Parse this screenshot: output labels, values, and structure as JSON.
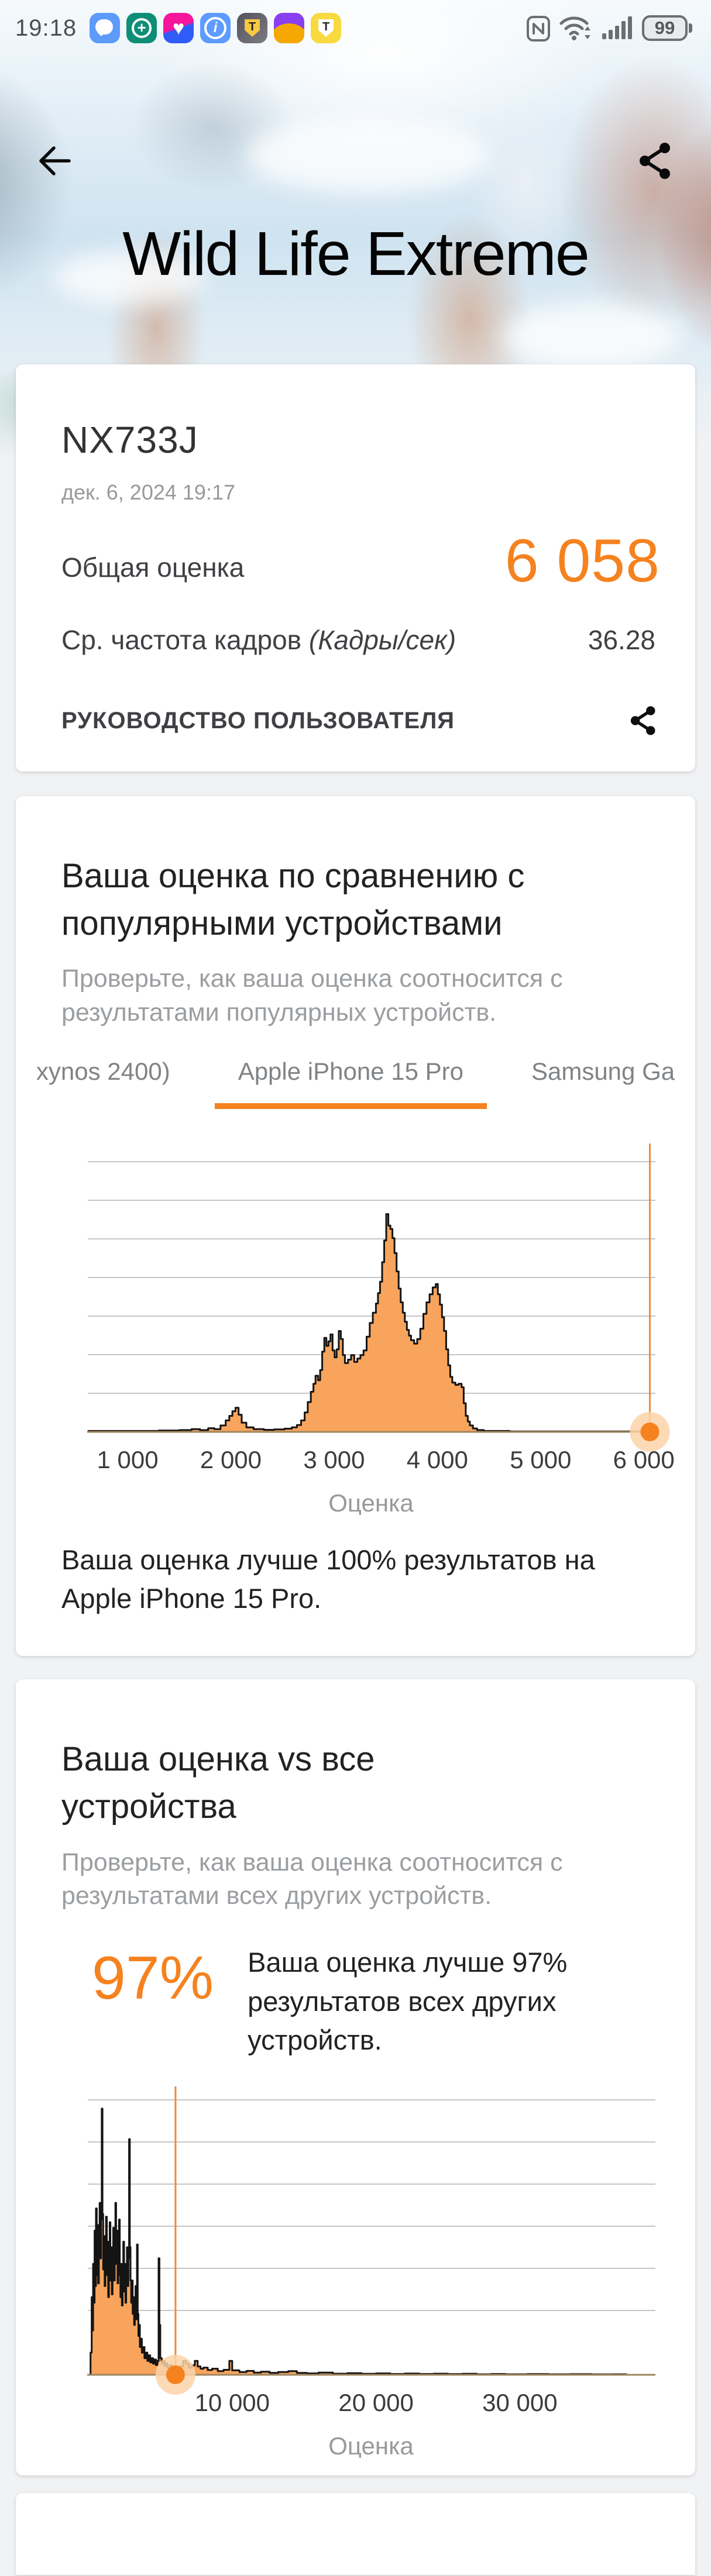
{
  "status_bar": {
    "time": "19:18",
    "app_icons": [
      "chat",
      "health-plus",
      "heart",
      "info",
      "t-shield-dark",
      "wallet-sunrise",
      "t-shield-yellow"
    ],
    "battery_percent": "99"
  },
  "header": {
    "title": "Wild Life Extreme"
  },
  "result_card": {
    "device": "NX733J",
    "datetime": "дек. 6, 2024 19:17",
    "score_label": "Общая оценка",
    "score_value": "6 058",
    "fps_label": "Ср. частота кадров ",
    "fps_unit": "(Кадры/сек)",
    "fps_value": "36.28",
    "user_guide_label": "РУКОВОДСТВО ПОЛЬЗОВАТЕЛЯ"
  },
  "compare_popular": {
    "title": "Ваша оценка по сравнению с популярными устройствами",
    "subtitle": "Проверьте, как ваша оценка соотносится с результатами популярных устройств.",
    "tabs": [
      {
        "label": "xynos 2400)",
        "active": false
      },
      {
        "label": "Apple iPhone 15 Pro",
        "active": true
      },
      {
        "label": "Samsung Ga",
        "active": false
      }
    ],
    "result_text": "Ваша оценка лучше 100% результатов на Apple iPhone 15 Pro."
  },
  "compare_all": {
    "title": "Ваша оценка vs все устройства",
    "subtitle": "Проверьте, как ваша оценка соотносится с результатами всех других устройств.",
    "percent": "97%",
    "result_text": "Ваша оценка лучше 97% результатов всех других устройств."
  },
  "colors": {
    "accent": "#F5821F",
    "hist_fill": "#F9A45C",
    "hist_stroke": "#141414",
    "marker_line": "#EE8B3F",
    "halo": "#FBD4A8",
    "axis": "#A08660",
    "grid": "#C6C6C6"
  },
  "chart_data": [
    {
      "type": "area",
      "title": "",
      "xlabel": "Оценка",
      "ylabel": "",
      "xlim": [
        620,
        6095
      ],
      "ylim": [
        0,
        1
      ],
      "grid": true,
      "gridline_count": 7,
      "legend": "none",
      "x_ticks": [
        1000,
        2000,
        3000,
        4000,
        5000,
        6000
      ],
      "x_tick_labels": [
        "1 000",
        "2 000",
        "3 000",
        "4 000",
        "5 000",
        "6 000"
      ],
      "marker_score": 6058,
      "series": [
        {
          "name": "score-distribution-iphone15pro",
          "points": [
            [
              620,
              0.004
            ],
            [
              1000,
              0.004
            ],
            [
              1300,
              0.006
            ],
            [
              1500,
              0.008
            ],
            [
              1620,
              0.012
            ],
            [
              1700,
              0.008
            ],
            [
              1780,
              0.016
            ],
            [
              1840,
              0.012
            ],
            [
              1900,
              0.028
            ],
            [
              1950,
              0.05
            ],
            [
              1985,
              0.07
            ],
            [
              2015,
              0.09
            ],
            [
              2045,
              0.105
            ],
            [
              2075,
              0.075
            ],
            [
              2105,
              0.04
            ],
            [
              2150,
              0.02
            ],
            [
              2220,
              0.012
            ],
            [
              2320,
              0.009
            ],
            [
              2420,
              0.011
            ],
            [
              2520,
              0.014
            ],
            [
              2590,
              0.02
            ],
            [
              2640,
              0.03
            ],
            [
              2680,
              0.05
            ],
            [
              2715,
              0.085
            ],
            [
              2745,
              0.13
            ],
            [
              2775,
              0.175
            ],
            [
              2800,
              0.21
            ],
            [
              2820,
              0.245
            ],
            [
              2845,
              0.225
            ],
            [
              2865,
              0.27
            ],
            [
              2885,
              0.35
            ],
            [
              2905,
              0.41
            ],
            [
              2925,
              0.375
            ],
            [
              2945,
              0.395
            ],
            [
              2965,
              0.425
            ],
            [
              2985,
              0.355
            ],
            [
              3005,
              0.325
            ],
            [
              3025,
              0.36
            ],
            [
              3045,
              0.44
            ],
            [
              3065,
              0.405
            ],
            [
              3085,
              0.335
            ],
            [
              3105,
              0.3
            ],
            [
              3135,
              0.315
            ],
            [
              3165,
              0.335
            ],
            [
              3195,
              0.305
            ],
            [
              3225,
              0.32
            ],
            [
              3255,
              0.335
            ],
            [
              3285,
              0.355
            ],
            [
              3315,
              0.415
            ],
            [
              3345,
              0.475
            ],
            [
              3375,
              0.52
            ],
            [
              3405,
              0.56
            ],
            [
              3425,
              0.605
            ],
            [
              3445,
              0.655
            ],
            [
              3465,
              0.74
            ],
            [
              3485,
              0.835
            ],
            [
              3505,
              0.95
            ],
            [
              3525,
              0.9
            ],
            [
              3545,
              0.885
            ],
            [
              3565,
              0.845
            ],
            [
              3585,
              0.78
            ],
            [
              3605,
              0.7
            ],
            [
              3625,
              0.625
            ],
            [
              3645,
              0.565
            ],
            [
              3665,
              0.52
            ],
            [
              3685,
              0.48
            ],
            [
              3705,
              0.445
            ],
            [
              3725,
              0.42
            ],
            [
              3745,
              0.4
            ],
            [
              3775,
              0.385
            ],
            [
              3805,
              0.405
            ],
            [
              3835,
              0.45
            ],
            [
              3865,
              0.515
            ],
            [
              3895,
              0.565
            ],
            [
              3925,
              0.6
            ],
            [
              3955,
              0.63
            ],
            [
              3985,
              0.645
            ],
            [
              4005,
              0.6
            ],
            [
              4025,
              0.555
            ],
            [
              4045,
              0.5
            ],
            [
              4065,
              0.44
            ],
            [
              4085,
              0.36
            ],
            [
              4105,
              0.29
            ],
            [
              4125,
              0.24
            ],
            [
              4145,
              0.215
            ],
            [
              4175,
              0.205
            ],
            [
              4205,
              0.21
            ],
            [
              4235,
              0.195
            ],
            [
              4255,
              0.125
            ],
            [
              4275,
              0.07
            ],
            [
              4295,
              0.045
            ],
            [
              4315,
              0.028
            ],
            [
              4345,
              0.015
            ],
            [
              4385,
              0.008
            ],
            [
              4450,
              0.004
            ],
            [
              4700,
              0.002
            ],
            [
              5200,
              0.002
            ],
            [
              6095,
              0.002
            ]
          ]
        }
      ]
    },
    {
      "type": "area",
      "title": "",
      "xlabel": "Оценка",
      "ylabel": "",
      "xlim": [
        0,
        39300
      ],
      "ylim": [
        0,
        1
      ],
      "grid": true,
      "gridline_count": 6,
      "legend": "none",
      "x_ticks": [
        10000,
        20000,
        30000
      ],
      "x_tick_labels": [
        "10 000",
        "20 000",
        "30 000"
      ],
      "marker_score": 6058,
      "series": [
        {
          "name": "score-distribution-all-devices",
          "points": [
            [
              150,
              0.08
            ],
            [
              230,
              0.28
            ],
            [
              280,
              0.16
            ],
            [
              330,
              0.4
            ],
            [
              380,
              0.26
            ],
            [
              430,
              0.52
            ],
            [
              480,
              0.32
            ],
            [
              530,
              0.6
            ],
            [
              580,
              0.36
            ],
            [
              630,
              0.54
            ],
            [
              680,
              0.33
            ],
            [
              730,
              0.47
            ],
            [
              780,
              0.62
            ],
            [
              830,
              0.42
            ],
            [
              880,
              0.56
            ],
            [
              930,
              0.96
            ],
            [
              980,
              0.58
            ],
            [
              1030,
              0.38
            ],
            [
              1080,
              0.5
            ],
            [
              1130,
              0.32
            ],
            [
              1180,
              0.46
            ],
            [
              1230,
              0.57
            ],
            [
              1280,
              0.36
            ],
            [
              1330,
              0.48
            ],
            [
              1380,
              0.28
            ],
            [
              1430,
              0.42
            ],
            [
              1480,
              0.55
            ],
            [
              1530,
              0.34
            ],
            [
              1580,
              0.46
            ],
            [
              1630,
              0.29
            ],
            [
              1680,
              0.4
            ],
            [
              1730,
              0.53
            ],
            [
              1780,
              0.34
            ],
            [
              1830,
              0.46
            ],
            [
              1880,
              0.62
            ],
            [
              1930,
              0.4
            ],
            [
              1980,
              0.52
            ],
            [
              2030,
              0.33
            ],
            [
              2080,
              0.44
            ],
            [
              2130,
              0.56
            ],
            [
              2180,
              0.36
            ],
            [
              2230,
              0.28
            ],
            [
              2280,
              0.4
            ],
            [
              2330,
              0.25
            ],
            [
              2380,
              0.36
            ],
            [
              2430,
              0.48
            ],
            [
              2480,
              0.3
            ],
            [
              2530,
              0.4
            ],
            [
              2580,
              0.26
            ],
            [
              2630,
              0.36
            ],
            [
              2680,
              0.46
            ],
            [
              2730,
              0.32
            ],
            [
              2780,
              0.42
            ],
            [
              2830,
              0.85
            ],
            [
              2880,
              0.46
            ],
            [
              2930,
              0.34
            ],
            [
              2980,
              0.26
            ],
            [
              3030,
              0.34
            ],
            [
              3080,
              0.22
            ],
            [
              3130,
              0.28
            ],
            [
              3180,
              0.18
            ],
            [
              3230,
              0.24
            ],
            [
              3280,
              0.32
            ],
            [
              3330,
              0.2
            ],
            [
              3380,
              0.47
            ],
            [
              3430,
              0.22
            ],
            [
              3480,
              0.14
            ],
            [
              3530,
              0.18
            ],
            [
              3580,
              0.1
            ],
            [
              3650,
              0.13
            ],
            [
              3720,
              0.08
            ],
            [
              3800,
              0.1
            ],
            [
              3900,
              0.06
            ],
            [
              4000,
              0.08
            ],
            [
              4100,
              0.05
            ],
            [
              4200,
              0.07
            ],
            [
              4300,
              0.045
            ],
            [
              4400,
              0.06
            ],
            [
              4500,
              0.04
            ],
            [
              4600,
              0.055
            ],
            [
              4700,
              0.035
            ],
            [
              4800,
              0.05
            ],
            [
              4880,
              0.42
            ],
            [
              4940,
              0.18
            ],
            [
              5000,
              0.06
            ],
            [
              5100,
              0.04
            ],
            [
              5200,
              0.05
            ],
            [
              5300,
              0.032
            ],
            [
              5400,
              0.042
            ],
            [
              5500,
              0.026
            ],
            [
              5650,
              0.034
            ],
            [
              5800,
              0.022
            ],
            [
              6000,
              0.018
            ],
            [
              6200,
              0.022
            ],
            [
              6400,
              0.03
            ],
            [
              6600,
              0.05
            ],
            [
              6800,
              0.04
            ],
            [
              7000,
              0.026
            ],
            [
              7200,
              0.034
            ],
            [
              7400,
              0.05
            ],
            [
              7600,
              0.03
            ],
            [
              7800,
              0.022
            ],
            [
              8000,
              0.026
            ],
            [
              8300,
              0.017
            ],
            [
              8600,
              0.022
            ],
            [
              9000,
              0.013
            ],
            [
              9400,
              0.018
            ],
            [
              9800,
              0.05
            ],
            [
              10000,
              0.016
            ],
            [
              10500,
              0.01
            ],
            [
              11000,
              0.014
            ],
            [
              11500,
              0.008
            ],
            [
              12000,
              0.011
            ],
            [
              12600,
              0.007
            ],
            [
              13200,
              0.01
            ],
            [
              13900,
              0.013
            ],
            [
              14500,
              0.007
            ],
            [
              15200,
              0.005
            ],
            [
              16000,
              0.008
            ],
            [
              17000,
              0.004
            ],
            [
              18000,
              0.006
            ],
            [
              19000,
              0.0035
            ],
            [
              20000,
              0.005
            ],
            [
              21000,
              0.003
            ],
            [
              22000,
              0.0045
            ],
            [
              23000,
              0.003
            ],
            [
              24000,
              0.004
            ],
            [
              25000,
              0.0025
            ],
            [
              26000,
              0.0035
            ],
            [
              27000,
              0.002
            ],
            [
              28000,
              0.003
            ],
            [
              29000,
              0.002
            ],
            [
              30500,
              0.0028
            ],
            [
              32000,
              0.0018
            ],
            [
              33500,
              0.0024
            ],
            [
              35000,
              0.0015
            ],
            [
              36500,
              0.002
            ],
            [
              37400,
              0.0015
            ]
          ]
        }
      ]
    }
  ]
}
